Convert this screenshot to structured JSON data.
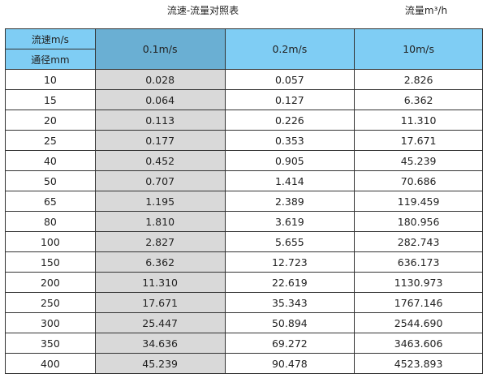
{
  "title": "流速-流量对照表",
  "unit_label": "流量m³/h",
  "header": {
    "velocity_label": "流速m/s",
    "diameter_label": "通径mm",
    "columns": [
      "0.1m/s",
      "0.2m/s",
      "10m/s"
    ]
  },
  "colors": {
    "header": "#7fcdf4",
    "highlight_header": "#6aafd3",
    "highlight_column": "#d9d9d9"
  },
  "rows": [
    [
      "10",
      "0.028",
      "0.057",
      "2.826"
    ],
    [
      "15",
      "0.064",
      "0.127",
      "6.362"
    ],
    [
      "20",
      "0.113",
      "0.226",
      "11.310"
    ],
    [
      "25",
      "0.177",
      "0.353",
      "17.671"
    ],
    [
      "40",
      "0.452",
      "0.905",
      "45.239"
    ],
    [
      "50",
      "0.707",
      "1.414",
      "70.686"
    ],
    [
      "65",
      "1.195",
      "2.389",
      "119.459"
    ],
    [
      "80",
      "1.810",
      "3.619",
      "180.956"
    ],
    [
      "100",
      "2.827",
      "5.655",
      "282.743"
    ],
    [
      "150",
      "6.362",
      "12.723",
      "636.173"
    ],
    [
      "200",
      "11.310",
      "22.619",
      "1130.973"
    ],
    [
      "250",
      "17.671",
      "35.343",
      "1767.146"
    ],
    [
      "300",
      "25.447",
      "50.894",
      "2544.690"
    ],
    [
      "350",
      "34.636",
      "69.272",
      "3463.606"
    ],
    [
      "400",
      "45.239",
      "90.478",
      "4523.893"
    ]
  ]
}
